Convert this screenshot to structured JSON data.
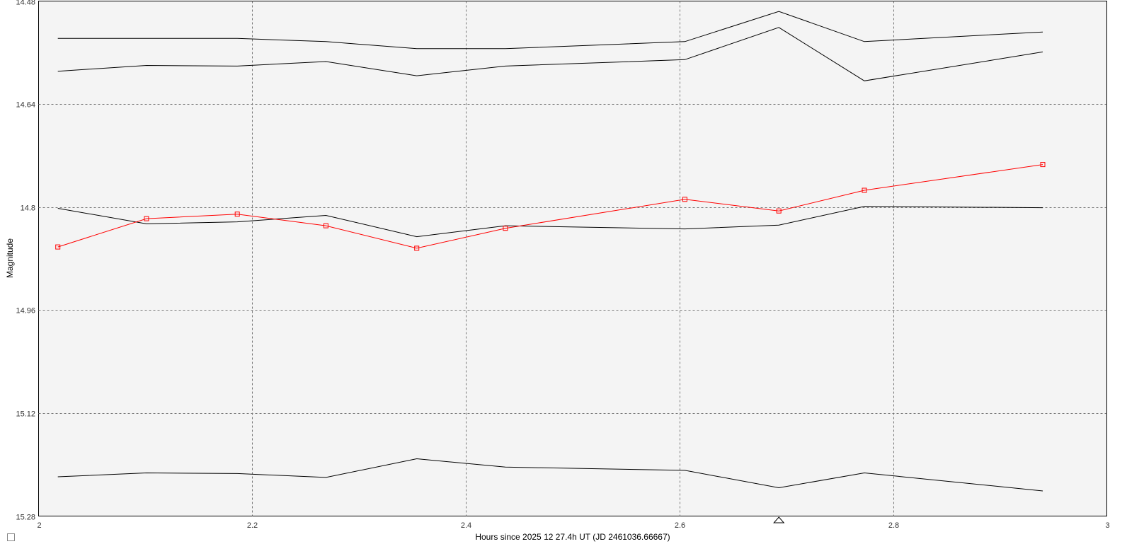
{
  "chart_data": {
    "type": "line",
    "xlabel": "Hours since 2025 12 27.4h UT (JD 2461036.66667)",
    "ylabel": "Magnitude",
    "xlim": [
      2,
      3
    ],
    "ylim": [
      15.28,
      14.48
    ],
    "y_inverted": true,
    "grid": true,
    "x_ticks": [
      2,
      2.2,
      2.4,
      2.6,
      2.8,
      3
    ],
    "x_tick_labels": [
      "2",
      "2.2",
      "2.4",
      "2.6",
      "2.8",
      "3"
    ],
    "y_ticks": [
      14.48,
      14.64,
      14.8,
      14.96,
      15.12,
      15.28
    ],
    "y_tick_labels": [
      "14.48",
      "14.64",
      "14.8",
      "14.96",
      "15.12",
      "15.28"
    ],
    "x": [
      2.018,
      2.101,
      2.186,
      2.269,
      2.354,
      2.437,
      2.605,
      2.693,
      2.773,
      2.94
    ],
    "series": [
      {
        "color": "#000000",
        "markers": false,
        "values": [
          14.538,
          14.538,
          14.538,
          14.543,
          14.554,
          14.554,
          14.543,
          14.496,
          14.543,
          14.528
        ]
      },
      {
        "color": "#000000",
        "markers": false,
        "values": [
          14.589,
          14.58,
          14.581,
          14.574,
          14.596,
          14.581,
          14.571,
          14.521,
          14.604,
          14.559
        ]
      },
      {
        "color": "#000000",
        "markers": false,
        "values": [
          14.802,
          14.826,
          14.823,
          14.813,
          14.846,
          14.829,
          14.834,
          14.828,
          14.799,
          14.801
        ]
      },
      {
        "color": "#ff0000",
        "markers": true,
        "values": [
          14.862,
          14.818,
          14.811,
          14.829,
          14.864,
          14.833,
          14.788,
          14.806,
          14.774,
          14.734
        ]
      },
      {
        "color": "#000000",
        "markers": false,
        "values": [
          15.219,
          15.213,
          15.214,
          15.22,
          15.191,
          15.204,
          15.209,
          15.236,
          15.213,
          15.241
        ]
      }
    ],
    "marker_x": 2.693
  }
}
